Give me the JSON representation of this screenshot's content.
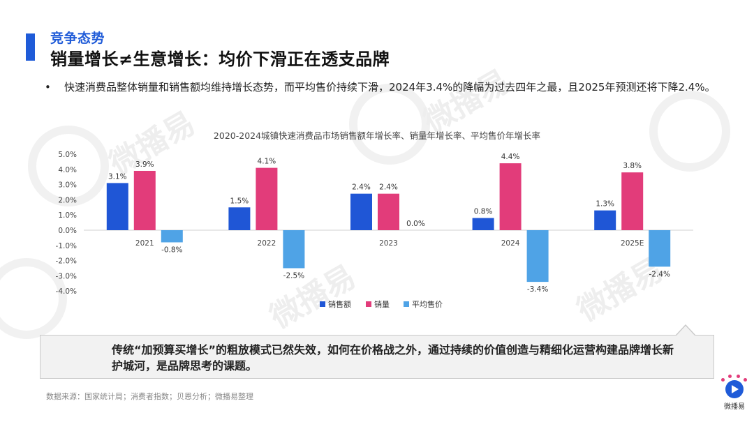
{
  "header": {
    "kicker": "竞争态势",
    "headline": "销量增长≠生意增长：均价下滑正在透支品牌",
    "accent_color": "#1f5bd8"
  },
  "bullet": {
    "marker": "•",
    "text": "快速消费品整体销量和销售额均维持增长态势，而平均售价持续下滑，2024年3.4%的降幅为过去四年之最，且2025年预测还将下降2.4%。"
  },
  "chart_data": {
    "type": "bar",
    "title": "2020-2024城镇快速消费品市场销售额年增长率、销量年增长率、平均售价年增长率",
    "categories": [
      "2021",
      "2022",
      "2023",
      "2024",
      "2025E"
    ],
    "series": [
      {
        "name": "销售额",
        "color": "#1f56d6",
        "values": [
          3.1,
          1.5,
          2.4,
          0.8,
          1.3
        ],
        "labels": [
          "3.1%",
          "1.5%",
          "2.4%",
          "0.8%",
          "1.3%"
        ]
      },
      {
        "name": "销量",
        "color": "#e23c7a",
        "values": [
          3.9,
          4.1,
          2.4,
          4.4,
          3.8
        ],
        "labels": [
          "3.9%",
          "4.1%",
          "2.4%",
          "4.4%",
          "3.8%"
        ]
      },
      {
        "name": "平均售价",
        "color": "#4fa3e6",
        "values": [
          -0.8,
          -2.5,
          0.0,
          -3.4,
          -2.4
        ],
        "labels": [
          "-0.8%",
          "-2.5%",
          "0.0%",
          "-3.4%",
          "-2.4%"
        ]
      }
    ],
    "ylim": [
      -4.0,
      5.0
    ],
    "yticks": [
      "5.0%",
      "4.0%",
      "3.0%",
      "2.0%",
      "1.0%",
      "0.0%",
      "-1.0%",
      "-2.0%",
      "-3.0%",
      "-4.0%"
    ],
    "ytick_values": [
      5,
      4,
      3,
      2,
      1,
      0,
      -1,
      -2,
      -3,
      -4
    ],
    "grid": false,
    "legend_position": "bottom-center"
  },
  "callout": {
    "text": "传统“加预算买增长”的粗放模式已然失效，如何在价格战之外，通过持续的价值创造与精细化运营构建品牌增长新护城河，是品牌思考的课题。"
  },
  "footer": {
    "source": "数据来源：国家统计局；消费者指数；贝恩分析；微播易整理",
    "brand_label": "微播易"
  },
  "watermark": {
    "text": "微播易"
  }
}
